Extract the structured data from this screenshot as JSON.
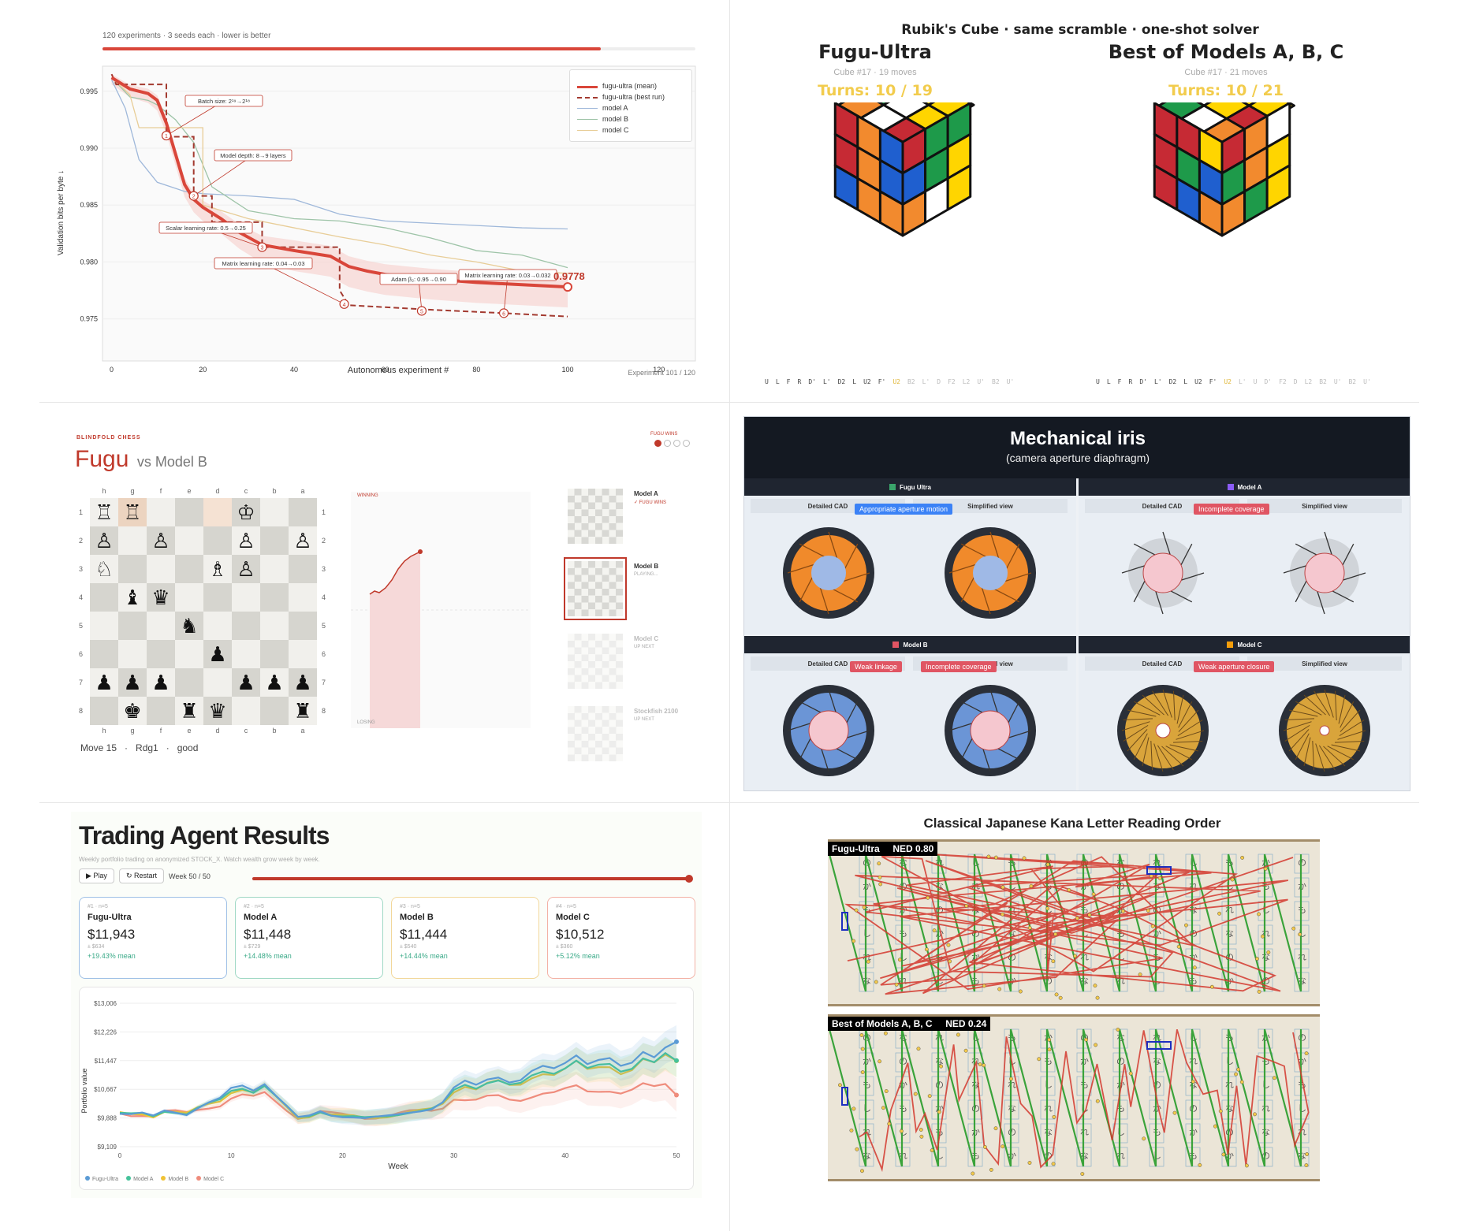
{
  "p1": {
    "subtitle": "120 experiments · 3 seeds each · lower is better",
    "ylabel": "Validation bits per byte ↓",
    "xlabel": "Autonomous experiment #",
    "footer": "Experiment 101 / 120",
    "final_value": "0.9778",
    "legend": [
      "fugu-ultra (mean)",
      "fugu-ultra (best run)",
      "model A",
      "model B",
      "model C"
    ],
    "annotations": [
      "Batch size: 2¹⁹→2¹⁸",
      "Model depth: 8→9 layers",
      "Scalar learning rate: 0.5→0.25",
      "Matrix learning rate: 0.04→0.03",
      "Adam β₂: 0.95→0.90",
      "Matrix learning rate: 0.03→0.032"
    ],
    "yticks": [
      "0.995",
      "0.990",
      "0.985",
      "0.980",
      "0.975"
    ],
    "xticks": [
      "0",
      "20",
      "40",
      "60",
      "80",
      "100",
      "120"
    ]
  },
  "chart_data": {
    "type": "line",
    "xlabel": "Autonomous experiment #",
    "ylabel": "Validation bits per byte ↓",
    "xlim": [
      -2,
      128
    ],
    "ylim": [
      0.9713,
      0.9972
    ],
    "series": [
      {
        "name": "fugu-ultra (mean)",
        "color": "#d9463a",
        "x": [
          0,
          4,
          8,
          10,
          12,
          14,
          16,
          18,
          20,
          24,
          28,
          33,
          40,
          48,
          52,
          56,
          60,
          70,
          80,
          90,
          100
        ],
        "y": [
          0.9962,
          0.9952,
          0.9948,
          0.9942,
          0.9922,
          0.9895,
          0.9868,
          0.9855,
          0.9848,
          0.9838,
          0.9826,
          0.9815,
          0.981,
          0.9805,
          0.9796,
          0.9792,
          0.9789,
          0.9785,
          0.9782,
          0.978,
          0.9778
        ]
      },
      {
        "name": "fugu-ultra (best run)",
        "color": "#a33a30",
        "x": [
          0,
          1,
          12,
          12,
          18,
          18,
          22,
          22,
          33,
          33,
          50,
          50,
          52,
          70,
          86,
          100
        ],
        "y": [
          0.9965,
          0.9956,
          0.9956,
          0.991,
          0.991,
          0.9858,
          0.9858,
          0.9835,
          0.9835,
          0.9813,
          0.9813,
          0.9775,
          0.9762,
          0.9758,
          0.9755,
          0.9752
        ]
      },
      {
        "name": "model A",
        "color": "#9fb8da",
        "x": [
          0,
          3,
          6,
          10,
          16,
          20,
          30,
          40,
          50,
          60,
          70,
          80,
          90,
          100
        ],
        "y": [
          0.996,
          0.9935,
          0.989,
          0.987,
          0.9862,
          0.986,
          0.9858,
          0.9855,
          0.9842,
          0.9836,
          0.9834,
          0.9832,
          0.983,
          0.9829
        ]
      },
      {
        "name": "model B",
        "color": "#9ec4a8",
        "x": [
          0,
          4,
          8,
          10,
          14,
          18,
          22,
          30,
          40,
          50,
          60,
          70,
          80,
          90,
          100
        ],
        "y": [
          0.9962,
          0.9945,
          0.9942,
          0.9938,
          0.9925,
          0.9905,
          0.9866,
          0.9845,
          0.9838,
          0.9836,
          0.983,
          0.9821,
          0.981,
          0.9806,
          0.9795
        ]
      },
      {
        "name": "model C",
        "color": "#e8cd97",
        "x": [
          0,
          4,
          6,
          20,
          20,
          30,
          40,
          50,
          60,
          70,
          80,
          90,
          100
        ],
        "y": [
          0.9962,
          0.9947,
          0.9918,
          0.9918,
          0.985,
          0.9838,
          0.983,
          0.9822,
          0.9815,
          0.9806,
          0.98,
          0.9792,
          0.979
        ]
      }
    ]
  },
  "p2": {
    "title": "Rubik's Cube  ·  same scramble  ·  one-shot solver",
    "left": {
      "name": "Fugu-Ultra",
      "meta": "Cube #17   ·   19 moves",
      "turns": "Turns: 10 / 19",
      "moves": [
        "U",
        "L",
        "F",
        "R",
        "D'",
        "L'",
        "D2",
        "L",
        "U2",
        "F'",
        "U2",
        "B2",
        "L'",
        "D",
        "F2",
        "L2",
        "U'",
        "B2",
        "U'"
      ],
      "done": 10
    },
    "right": {
      "name": "Best of Models A, B, C",
      "meta": "Cube #17   ·   21 moves",
      "turns": "Turns: 10 / 21",
      "moves": [
        "U",
        "L",
        "F",
        "R",
        "D'",
        "L'",
        "D2",
        "L",
        "U2",
        "F'",
        "U2",
        "L'",
        "U",
        "D'",
        "F2",
        "D",
        "L2",
        "B2",
        "U'",
        "B2",
        "U'"
      ],
      "done": 10
    }
  },
  "p3": {
    "kicker": "BLINDFOLD CHESS",
    "title": "Fugu",
    "vs": "vs Model B",
    "wins_label": "FUGU WINS",
    "status": "Move 15   ·   Rdg1   ·   good",
    "winning": "WINNING",
    "losing": "LOSING",
    "files": [
      "h",
      "g",
      "f",
      "e",
      "d",
      "c",
      "b",
      "a"
    ],
    "ranks": [
      "1",
      "2",
      "3",
      "4",
      "5",
      "6",
      "7",
      "8"
    ],
    "board": [
      [
        "♖",
        "♖",
        "",
        "",
        "",
        "♔",
        "",
        ""
      ],
      [
        "♙",
        "",
        "♙",
        "",
        "",
        "♙",
        "",
        "♙"
      ],
      [
        "♘",
        "",
        "",
        "",
        "♗",
        "♙",
        "",
        ""
      ],
      [
        "",
        "♝",
        "♛",
        "",
        "",
        "",
        "",
        ""
      ],
      [
        "",
        "",
        "",
        "♞",
        "",
        "",
        "",
        ""
      ],
      [
        "",
        "",
        "",
        "",
        "♟",
        "",
        "",
        ""
      ],
      [
        "♟",
        "♟",
        "♟",
        "",
        "",
        "♟",
        "♟",
        "♟"
      ],
      [
        "",
        "♚",
        "",
        "♜",
        "♛",
        "",
        "",
        "♜"
      ]
    ],
    "opponents": [
      {
        "name": "Model A",
        "status": "✓ FUGU WINS"
      },
      {
        "name": "Model B",
        "status": "PLAYING..."
      },
      {
        "name": "Model C",
        "status": "UP NEXT"
      },
      {
        "name": "Stockfish 2100",
        "status": "UP NEXT"
      }
    ]
  },
  "p4": {
    "title": "Mechanical iris",
    "subtitle": "(camera aperture diaphragm)",
    "quads": [
      {
        "name": "Fugu Ultra",
        "color": "#3aa56b",
        "tags": [
          "Appropriate aperture motion"
        ]
      },
      {
        "name": "Model A",
        "color": "#8b5cf6",
        "tags": [
          "Incomplete coverage"
        ]
      },
      {
        "name": "Model B",
        "color": "#e05563",
        "tags": [
          "Weak linkage",
          "Incomplete coverage"
        ]
      },
      {
        "name": "Model C",
        "color": "#f59e0b",
        "tags": [
          "Weak aperture closure"
        ]
      }
    ],
    "tab_left": "Detailed CAD",
    "tab_right": "Simplified view"
  },
  "p5": {
    "title": "Trading Agent Results",
    "subtitle": "Weekly portfolio trading on anonymized STOCK_X. Watch wealth grow week by week.",
    "play": "▶ Play",
    "restart": "↻ Restart",
    "week": "Week 50 / 50",
    "cards": [
      {
        "rank": "#1 · n=5",
        "name": "Fugu-Ultra",
        "value": "$11,943",
        "sd": "± $634",
        "mean": "+19.43% mean",
        "border": "#9fc0e6"
      },
      {
        "rank": "#2 · n=5",
        "name": "Model A",
        "value": "$11,448",
        "sd": "± $729",
        "mean": "+14.48% mean",
        "border": "#9fd8c4"
      },
      {
        "rank": "#3 · n=5",
        "name": "Model B",
        "value": "$11,444",
        "sd": "± $540",
        "mean": "+14.44% mean",
        "border": "#f2d79a"
      },
      {
        "rank": "#4 · n=5",
        "name": "Model C",
        "value": "$10,512",
        "sd": "± $360",
        "mean": "+5.12% mean",
        "border": "#f3b1a5"
      }
    ],
    "yticks": [
      "$13,006",
      "$12,226",
      "$11,447",
      "$10,667",
      "$9,888",
      "$9,109"
    ],
    "xticks": [
      "0",
      "10",
      "20",
      "30",
      "40",
      "50"
    ],
    "xlabel": "Week",
    "ylabel": "Portfolio value",
    "legend": [
      "Fugu-Ultra",
      "Model A",
      "Model B",
      "Model C"
    ],
    "colors": [
      "#5b9bd5",
      "#45c29a",
      "#f0c234",
      "#ef8c7c"
    ]
  },
  "p6": {
    "title": "Classical Japanese Kana Letter Reading Order",
    "top_label": "Fugu-Ultra     NED 0.80",
    "bottom_label": "Best of Models A, B, C     NED 0.24"
  }
}
